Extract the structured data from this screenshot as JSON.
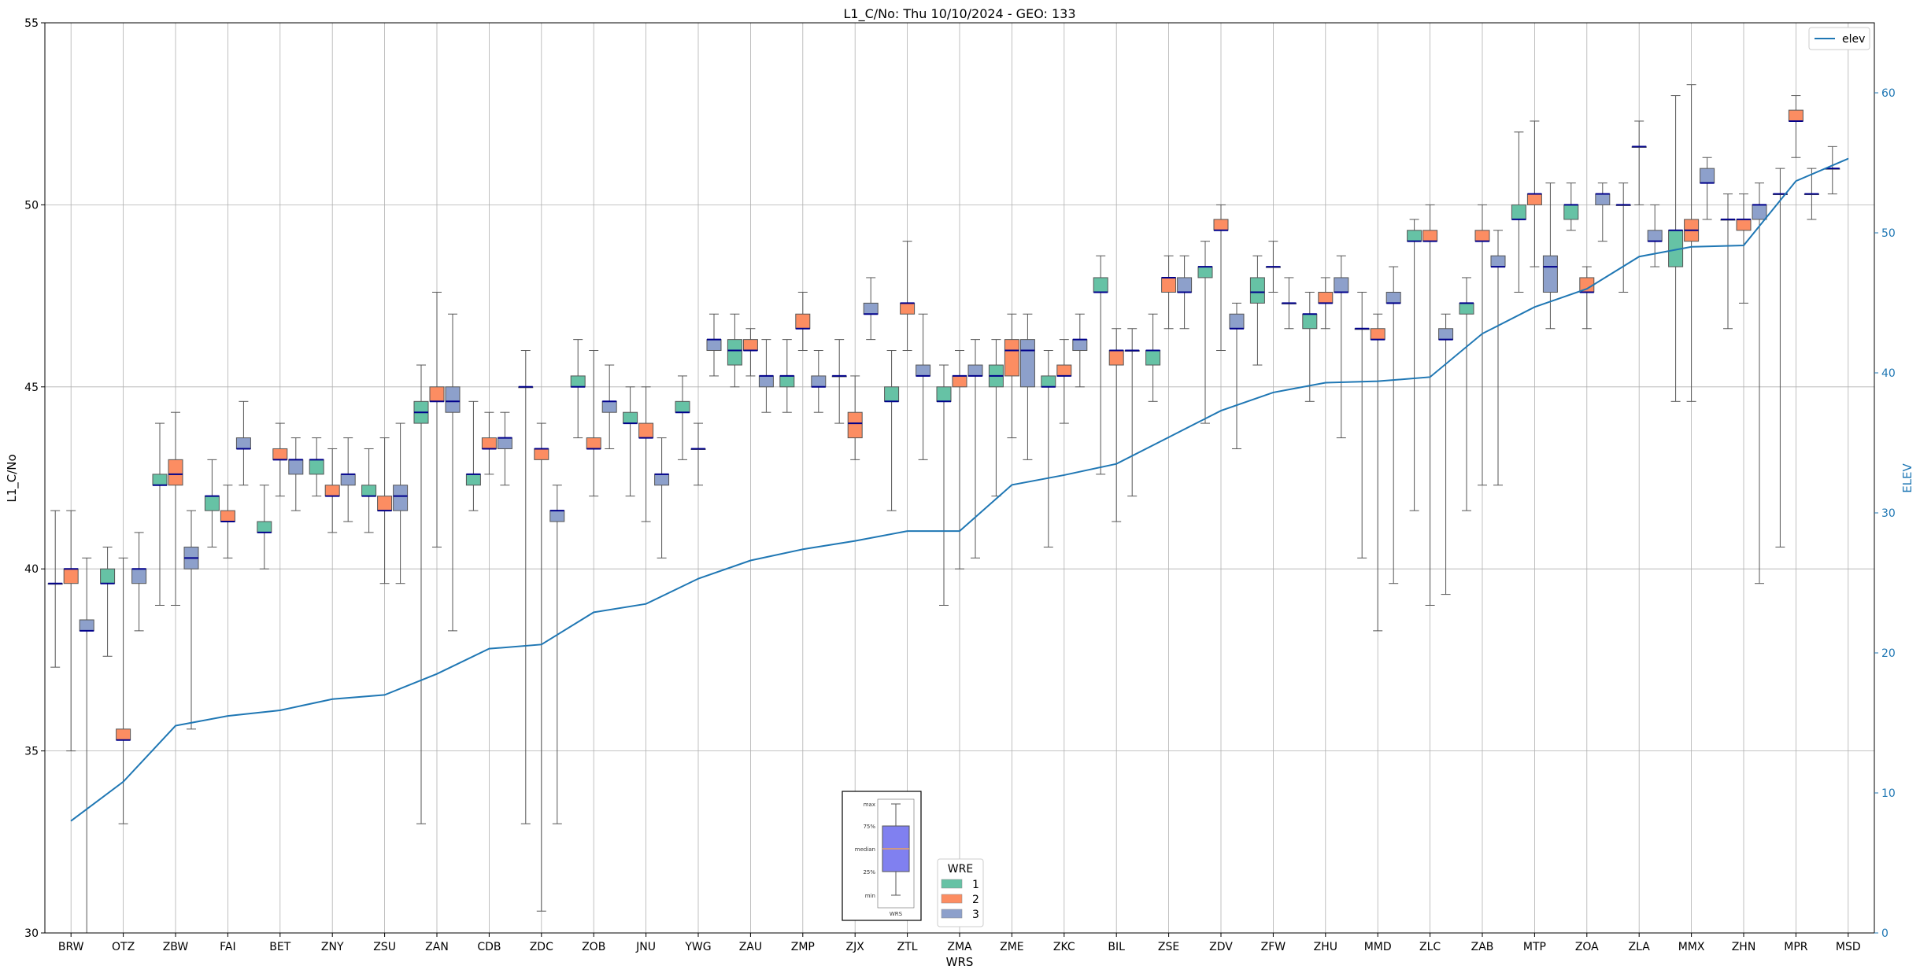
{
  "chart_data": {
    "type": "box",
    "title": "L1_C/No: Thu 10/10/2024 - GEO: 133",
    "xlabel": "WRS",
    "ylabel": "L1_C/No",
    "ylabel_right": "ELEV",
    "ylim": [
      30,
      55
    ],
    "ylim_right": [
      0,
      65
    ],
    "yticks": [
      "30",
      "35",
      "40",
      "45",
      "50",
      "55"
    ],
    "yticks_right": [
      "0",
      "10",
      "20",
      "30",
      "40",
      "50",
      "60"
    ],
    "grid": true,
    "categories": [
      "BRW",
      "OTZ",
      "ZBW",
      "FAI",
      "BET",
      "ZNY",
      "ZSU",
      "ZAN",
      "CDB",
      "ZDC",
      "ZOB",
      "JNU",
      "YWG",
      "ZAU",
      "ZMP",
      "ZJX",
      "ZTL",
      "ZMA",
      "ZME",
      "ZKC",
      "BIL",
      "ZSE",
      "ZDV",
      "ZFW",
      "ZHU",
      "MMD",
      "ZLC",
      "ZAB",
      "MTP",
      "ZOA",
      "ZLA",
      "MMX",
      "ZHN",
      "MPR",
      "MSD"
    ],
    "wre_colors": {
      "1": "#66c2a5",
      "2": "#fc8d62",
      "3": "#8da0cb"
    },
    "boxes": [
      {
        "cat": "BRW",
        "wre": 1,
        "min": 37.3,
        "q1": 39.6,
        "med": 39.6,
        "q3": 39.6,
        "max": 41.6
      },
      {
        "cat": "BRW",
        "wre": 2,
        "min": 35.0,
        "q1": 39.6,
        "med": 40.0,
        "q3": 40.0,
        "max": 41.6
      },
      {
        "cat": "BRW",
        "wre": 3,
        "min": 30.0,
        "q1": 38.3,
        "med": 38.3,
        "q3": 38.6,
        "max": 40.3
      },
      {
        "cat": "OTZ",
        "wre": 1,
        "min": 37.6,
        "q1": 39.6,
        "med": 39.6,
        "q3": 40.0,
        "max": 40.6
      },
      {
        "cat": "OTZ",
        "wre": 2,
        "min": 33.0,
        "q1": 35.3,
        "med": 35.3,
        "q3": 35.6,
        "max": 40.3
      },
      {
        "cat": "OTZ",
        "wre": 3,
        "min": 38.3,
        "q1": 39.6,
        "med": 40.0,
        "q3": 40.0,
        "max": 41.0
      },
      {
        "cat": "ZBW",
        "wre": 1,
        "min": 39.0,
        "q1": 42.3,
        "med": 42.3,
        "q3": 42.6,
        "max": 44.0
      },
      {
        "cat": "ZBW",
        "wre": 2,
        "min": 39.0,
        "q1": 42.3,
        "med": 42.6,
        "q3": 43.0,
        "max": 44.3
      },
      {
        "cat": "ZBW",
        "wre": 3,
        "min": 35.6,
        "q1": 40.0,
        "med": 40.3,
        "q3": 40.6,
        "max": 41.6
      },
      {
        "cat": "FAI",
        "wre": 1,
        "min": 40.6,
        "q1": 41.6,
        "med": 42.0,
        "q3": 42.0,
        "max": 43.0
      },
      {
        "cat": "FAI",
        "wre": 2,
        "min": 40.3,
        "q1": 41.3,
        "med": 41.3,
        "q3": 41.6,
        "max": 42.3
      },
      {
        "cat": "FAI",
        "wre": 3,
        "min": 42.3,
        "q1": 43.3,
        "med": 43.3,
        "q3": 43.6,
        "max": 44.6
      },
      {
        "cat": "BET",
        "wre": 1,
        "min": 40.0,
        "q1": 41.0,
        "med": 41.0,
        "q3": 41.3,
        "max": 42.3
      },
      {
        "cat": "BET",
        "wre": 2,
        "min": 42.0,
        "q1": 43.0,
        "med": 43.0,
        "q3": 43.3,
        "max": 44.0
      },
      {
        "cat": "BET",
        "wre": 3,
        "min": 41.6,
        "q1": 42.6,
        "med": 43.0,
        "q3": 43.0,
        "max": 43.6
      },
      {
        "cat": "ZNY",
        "wre": 1,
        "min": 42.0,
        "q1": 42.6,
        "med": 43.0,
        "q3": 43.0,
        "max": 43.6
      },
      {
        "cat": "ZNY",
        "wre": 2,
        "min": 41.0,
        "q1": 42.0,
        "med": 42.0,
        "q3": 42.3,
        "max": 43.3
      },
      {
        "cat": "ZNY",
        "wre": 3,
        "min": 41.3,
        "q1": 42.3,
        "med": 42.6,
        "q3": 42.6,
        "max": 43.6
      },
      {
        "cat": "ZSU",
        "wre": 1,
        "min": 41.0,
        "q1": 42.0,
        "med": 42.0,
        "q3": 42.3,
        "max": 43.3
      },
      {
        "cat": "ZSU",
        "wre": 2,
        "min": 39.6,
        "q1": 41.6,
        "med": 41.6,
        "q3": 42.0,
        "max": 43.6
      },
      {
        "cat": "ZSU",
        "wre": 3,
        "min": 39.6,
        "q1": 41.6,
        "med": 42.0,
        "q3": 42.3,
        "max": 44.0
      },
      {
        "cat": "ZAN",
        "wre": 1,
        "min": 33.0,
        "q1": 44.0,
        "med": 44.3,
        "q3": 44.6,
        "max": 45.6
      },
      {
        "cat": "ZAN",
        "wre": 2,
        "min": 40.6,
        "q1": 44.6,
        "med": 44.6,
        "q3": 45.0,
        "max": 47.6
      },
      {
        "cat": "ZAN",
        "wre": 3,
        "min": 38.3,
        "q1": 44.3,
        "med": 44.6,
        "q3": 45.0,
        "max": 47.0
      },
      {
        "cat": "CDB",
        "wre": 1,
        "min": 41.6,
        "q1": 42.3,
        "med": 42.6,
        "q3": 42.6,
        "max": 44.6
      },
      {
        "cat": "CDB",
        "wre": 2,
        "min": 42.6,
        "q1": 43.3,
        "med": 43.3,
        "q3": 43.6,
        "max": 44.3
      },
      {
        "cat": "CDB",
        "wre": 3,
        "min": 42.3,
        "q1": 43.3,
        "med": 43.6,
        "q3": 43.6,
        "max": 44.3
      },
      {
        "cat": "ZDC",
        "wre": 1,
        "min": 33.0,
        "q1": 45.0,
        "med": 45.0,
        "q3": 45.0,
        "max": 46.0
      },
      {
        "cat": "ZDC",
        "wre": 2,
        "min": 30.6,
        "q1": 43.0,
        "med": 43.3,
        "q3": 43.3,
        "max": 44.0
      },
      {
        "cat": "ZDC",
        "wre": 3,
        "min": 33.0,
        "q1": 41.3,
        "med": 41.6,
        "q3": 41.6,
        "max": 42.3
      },
      {
        "cat": "ZOB",
        "wre": 1,
        "min": 43.6,
        "q1": 45.0,
        "med": 45.0,
        "q3": 45.3,
        "max": 46.3
      },
      {
        "cat": "ZOB",
        "wre": 2,
        "min": 42.0,
        "q1": 43.3,
        "med": 43.3,
        "q3": 43.6,
        "max": 46.0
      },
      {
        "cat": "ZOB",
        "wre": 3,
        "min": 43.3,
        "q1": 44.3,
        "med": 44.6,
        "q3": 44.6,
        "max": 45.6
      },
      {
        "cat": "JNU",
        "wre": 1,
        "min": 42.0,
        "q1": 44.0,
        "med": 44.0,
        "q3": 44.3,
        "max": 45.0
      },
      {
        "cat": "JNU",
        "wre": 2,
        "min": 41.3,
        "q1": 43.6,
        "med": 43.6,
        "q3": 44.0,
        "max": 45.0
      },
      {
        "cat": "JNU",
        "wre": 3,
        "min": 40.3,
        "q1": 42.3,
        "med": 42.6,
        "q3": 42.6,
        "max": 43.6
      },
      {
        "cat": "YWG",
        "wre": 1,
        "min": 43.0,
        "q1": 44.3,
        "med": 44.3,
        "q3": 44.6,
        "max": 45.3
      },
      {
        "cat": "YWG",
        "wre": 2,
        "min": 42.3,
        "q1": 43.3,
        "med": 43.3,
        "q3": 43.3,
        "max": 44.0
      },
      {
        "cat": "YWG",
        "wre": 3,
        "min": 45.3,
        "q1": 46.0,
        "med": 46.3,
        "q3": 46.3,
        "max": 47.0
      },
      {
        "cat": "ZAU",
        "wre": 1,
        "min": 45.0,
        "q1": 45.6,
        "med": 46.0,
        "q3": 46.3,
        "max": 47.0
      },
      {
        "cat": "ZAU",
        "wre": 2,
        "min": 45.3,
        "q1": 46.0,
        "med": 46.0,
        "q3": 46.3,
        "max": 46.6
      },
      {
        "cat": "ZAU",
        "wre": 3,
        "min": 44.3,
        "q1": 45.0,
        "med": 45.3,
        "q3": 45.3,
        "max": 46.3
      },
      {
        "cat": "ZMP",
        "wre": 1,
        "min": 44.3,
        "q1": 45.0,
        "med": 45.3,
        "q3": 45.3,
        "max": 46.3
      },
      {
        "cat": "ZMP",
        "wre": 2,
        "min": 46.0,
        "q1": 46.6,
        "med": 46.6,
        "q3": 47.0,
        "max": 47.6
      },
      {
        "cat": "ZMP",
        "wre": 3,
        "min": 44.3,
        "q1": 45.0,
        "med": 45.0,
        "q3": 45.3,
        "max": 46.0
      },
      {
        "cat": "ZJX",
        "wre": 1,
        "min": 44.0,
        "q1": 45.3,
        "med": 45.3,
        "q3": 45.3,
        "max": 46.3
      },
      {
        "cat": "ZJX",
        "wre": 2,
        "min": 43.0,
        "q1": 43.6,
        "med": 44.0,
        "q3": 44.3,
        "max": 45.3
      },
      {
        "cat": "ZJX",
        "wre": 3,
        "min": 46.3,
        "q1": 47.0,
        "med": 47.0,
        "q3": 47.3,
        "max": 48.0
      },
      {
        "cat": "ZTL",
        "wre": 1,
        "min": 41.6,
        "q1": 44.6,
        "med": 44.6,
        "q3": 45.0,
        "max": 46.0
      },
      {
        "cat": "ZTL",
        "wre": 2,
        "min": 46.0,
        "q1": 47.0,
        "med": 47.3,
        "q3": 47.3,
        "max": 49.0
      },
      {
        "cat": "ZTL",
        "wre": 3,
        "min": 43.0,
        "q1": 45.3,
        "med": 45.3,
        "q3": 45.6,
        "max": 47.0
      },
      {
        "cat": "ZMA",
        "wre": 1,
        "min": 39.0,
        "q1": 44.6,
        "med": 44.6,
        "q3": 45.0,
        "max": 45.6
      },
      {
        "cat": "ZMA",
        "wre": 2,
        "min": 40.0,
        "q1": 45.0,
        "med": 45.3,
        "q3": 45.3,
        "max": 46.0
      },
      {
        "cat": "ZMA",
        "wre": 3,
        "min": 40.3,
        "q1": 45.3,
        "med": 45.3,
        "q3": 45.6,
        "max": 46.3
      },
      {
        "cat": "ZME",
        "wre": 1,
        "min": 42.0,
        "q1": 45.0,
        "med": 45.3,
        "q3": 45.6,
        "max": 46.3
      },
      {
        "cat": "ZME",
        "wre": 2,
        "min": 43.6,
        "q1": 45.3,
        "med": 46.0,
        "q3": 46.3,
        "max": 47.0
      },
      {
        "cat": "ZME",
        "wre": 3,
        "min": 43.0,
        "q1": 45.0,
        "med": 46.0,
        "q3": 46.3,
        "max": 47.0
      },
      {
        "cat": "ZKC",
        "wre": 1,
        "min": 40.6,
        "q1": 45.0,
        "med": 45.0,
        "q3": 45.3,
        "max": 46.0
      },
      {
        "cat": "ZKC",
        "wre": 2,
        "min": 44.0,
        "q1": 45.3,
        "med": 45.3,
        "q3": 45.6,
        "max": 46.3
      },
      {
        "cat": "ZKC",
        "wre": 3,
        "min": 45.0,
        "q1": 46.0,
        "med": 46.3,
        "q3": 46.3,
        "max": 47.0
      },
      {
        "cat": "BIL",
        "wre": 1,
        "min": 42.6,
        "q1": 47.6,
        "med": 47.6,
        "q3": 48.0,
        "max": 48.6
      },
      {
        "cat": "BIL",
        "wre": 2,
        "min": 41.3,
        "q1": 45.6,
        "med": 46.0,
        "q3": 46.0,
        "max": 46.6
      },
      {
        "cat": "BIL",
        "wre": 3,
        "min": 42.0,
        "q1": 46.0,
        "med": 46.0,
        "q3": 46.0,
        "max": 46.6
      },
      {
        "cat": "ZSE",
        "wre": 1,
        "min": 44.6,
        "q1": 45.6,
        "med": 46.0,
        "q3": 46.0,
        "max": 47.0
      },
      {
        "cat": "ZSE",
        "wre": 2,
        "min": 46.6,
        "q1": 47.6,
        "med": 48.0,
        "q3": 48.0,
        "max": 48.6
      },
      {
        "cat": "ZSE",
        "wre": 3,
        "min": 46.6,
        "q1": 47.6,
        "med": 47.6,
        "q3": 48.0,
        "max": 48.6
      },
      {
        "cat": "ZDV",
        "wre": 1,
        "min": 44.0,
        "q1": 48.0,
        "med": 48.3,
        "q3": 48.3,
        "max": 49.0
      },
      {
        "cat": "ZDV",
        "wre": 2,
        "min": 46.0,
        "q1": 49.3,
        "med": 49.3,
        "q3": 49.6,
        "max": 50.0
      },
      {
        "cat": "ZDV",
        "wre": 3,
        "min": 43.3,
        "q1": 46.6,
        "med": 46.6,
        "q3": 47.0,
        "max": 47.3
      },
      {
        "cat": "ZFW",
        "wre": 1,
        "min": 45.6,
        "q1": 47.3,
        "med": 47.6,
        "q3": 48.0,
        "max": 48.6
      },
      {
        "cat": "ZFW",
        "wre": 2,
        "min": 47.6,
        "q1": 48.3,
        "med": 48.3,
        "q3": 48.3,
        "max": 49.0
      },
      {
        "cat": "ZFW",
        "wre": 3,
        "min": 46.6,
        "q1": 47.3,
        "med": 47.3,
        "q3": 47.3,
        "max": 48.0
      },
      {
        "cat": "ZHU",
        "wre": 1,
        "min": 44.6,
        "q1": 46.6,
        "med": 47.0,
        "q3": 47.0,
        "max": 47.6
      },
      {
        "cat": "ZHU",
        "wre": 2,
        "min": 46.6,
        "q1": 47.3,
        "med": 47.3,
        "q3": 47.6,
        "max": 48.0
      },
      {
        "cat": "ZHU",
        "wre": 3,
        "min": 43.6,
        "q1": 47.6,
        "med": 47.6,
        "q3": 48.0,
        "max": 48.6
      },
      {
        "cat": "MMD",
        "wre": 1,
        "min": 40.3,
        "q1": 46.6,
        "med": 46.6,
        "q3": 46.6,
        "max": 47.6
      },
      {
        "cat": "MMD",
        "wre": 2,
        "min": 38.3,
        "q1": 46.3,
        "med": 46.3,
        "q3": 46.6,
        "max": 47.0
      },
      {
        "cat": "MMD",
        "wre": 3,
        "min": 39.6,
        "q1": 47.3,
        "med": 47.3,
        "q3": 47.6,
        "max": 48.3
      },
      {
        "cat": "ZLC",
        "wre": 1,
        "min": 41.6,
        "q1": 49.0,
        "med": 49.0,
        "q3": 49.3,
        "max": 49.6
      },
      {
        "cat": "ZLC",
        "wre": 2,
        "min": 39.0,
        "q1": 49.0,
        "med": 49.0,
        "q3": 49.3,
        "max": 50.0
      },
      {
        "cat": "ZLC",
        "wre": 3,
        "min": 39.3,
        "q1": 46.3,
        "med": 46.3,
        "q3": 46.6,
        "max": 47.0
      },
      {
        "cat": "ZAB",
        "wre": 1,
        "min": 41.6,
        "q1": 47.0,
        "med": 47.3,
        "q3": 47.3,
        "max": 48.0
      },
      {
        "cat": "ZAB",
        "wre": 2,
        "min": 42.3,
        "q1": 49.0,
        "med": 49.0,
        "q3": 49.3,
        "max": 50.0
      },
      {
        "cat": "ZAB",
        "wre": 3,
        "min": 42.3,
        "q1": 48.3,
        "med": 48.3,
        "q3": 48.6,
        "max": 49.3
      },
      {
        "cat": "MTP",
        "wre": 1,
        "min": 47.6,
        "q1": 49.6,
        "med": 49.6,
        "q3": 50.0,
        "max": 52.0
      },
      {
        "cat": "MTP",
        "wre": 2,
        "min": 48.3,
        "q1": 50.0,
        "med": 50.3,
        "q3": 50.3,
        "max": 52.3
      },
      {
        "cat": "MTP",
        "wre": 3,
        "min": 46.6,
        "q1": 47.6,
        "med": 48.3,
        "q3": 48.6,
        "max": 50.6
      },
      {
        "cat": "ZOA",
        "wre": 1,
        "min": 49.3,
        "q1": 49.6,
        "med": 50.0,
        "q3": 50.0,
        "max": 50.6
      },
      {
        "cat": "ZOA",
        "wre": 2,
        "min": 46.6,
        "q1": 47.6,
        "med": 47.6,
        "q3": 48.0,
        "max": 48.3
      },
      {
        "cat": "ZOA",
        "wre": 3,
        "min": 49.0,
        "q1": 50.0,
        "med": 50.3,
        "q3": 50.3,
        "max": 50.6
      },
      {
        "cat": "ZLA",
        "wre": 1,
        "min": 47.6,
        "q1": 50.0,
        "med": 50.0,
        "q3": 50.0,
        "max": 50.6
      },
      {
        "cat": "ZLA",
        "wre": 2,
        "min": 50.0,
        "q1": 51.6,
        "med": 51.6,
        "q3": 51.6,
        "max": 52.3
      },
      {
        "cat": "ZLA",
        "wre": 3,
        "min": 48.3,
        "q1": 49.0,
        "med": 49.0,
        "q3": 49.3,
        "max": 50.0
      },
      {
        "cat": "MMX",
        "wre": 1,
        "min": 44.6,
        "q1": 48.3,
        "med": 49.3,
        "q3": 49.3,
        "max": 53.0
      },
      {
        "cat": "MMX",
        "wre": 2,
        "min": 44.6,
        "q1": 49.0,
        "med": 49.3,
        "q3": 49.6,
        "max": 53.3
      },
      {
        "cat": "MMX",
        "wre": 3,
        "min": 49.6,
        "q1": 50.6,
        "med": 50.6,
        "q3": 51.0,
        "max": 51.3
      },
      {
        "cat": "ZHN",
        "wre": 1,
        "min": 46.6,
        "q1": 49.6,
        "med": 49.6,
        "q3": 49.6,
        "max": 50.3
      },
      {
        "cat": "ZHN",
        "wre": 2,
        "min": 47.3,
        "q1": 49.3,
        "med": 49.6,
        "q3": 49.6,
        "max": 50.3
      },
      {
        "cat": "ZHN",
        "wre": 3,
        "min": 39.6,
        "q1": 49.6,
        "med": 50.0,
        "q3": 50.0,
        "max": 50.6
      },
      {
        "cat": "MPR",
        "wre": 1,
        "min": 40.6,
        "q1": 50.3,
        "med": 50.3,
        "q3": 50.3,
        "max": 51.0
      },
      {
        "cat": "MPR",
        "wre": 2,
        "min": 51.3,
        "q1": 52.3,
        "med": 52.3,
        "q3": 52.6,
        "max": 53.0
      },
      {
        "cat": "MPR",
        "wre": 3,
        "min": 49.6,
        "q1": 50.3,
        "med": 50.3,
        "q3": 50.3,
        "max": 51.0
      },
      {
        "cat": "MSD",
        "wre": 1,
        "min": 50.3,
        "q1": 51.0,
        "med": 51.0,
        "q3": 51.0,
        "max": 51.6
      }
    ],
    "elev_series": {
      "name": "elev",
      "color": "#1f77b4",
      "values": [
        8.0,
        10.8,
        14.8,
        15.5,
        15.9,
        16.7,
        17.0,
        18.5,
        20.3,
        20.6,
        22.9,
        23.5,
        25.3,
        26.6,
        27.4,
        28.0,
        28.7,
        28.7,
        32.0,
        32.7,
        33.5,
        35.4,
        37.3,
        38.6,
        39.3,
        39.4,
        39.7,
        42.8,
        44.7,
        46.0,
        48.3,
        49.0,
        49.1,
        53.7,
        55.3
      ]
    },
    "legend_elev": {
      "label": "elev",
      "placement": "top-right"
    },
    "legend_wre": {
      "title": "WRE",
      "entries": [
        "1",
        "2",
        "3"
      ],
      "placement": "bottom-center"
    },
    "inset_key": {
      "labels": [
        "max",
        "75%",
        "median",
        "25%",
        "min"
      ],
      "xlabel": "WRS",
      "box_color": "#8080f0",
      "median_color": "#e8a060"
    }
  }
}
